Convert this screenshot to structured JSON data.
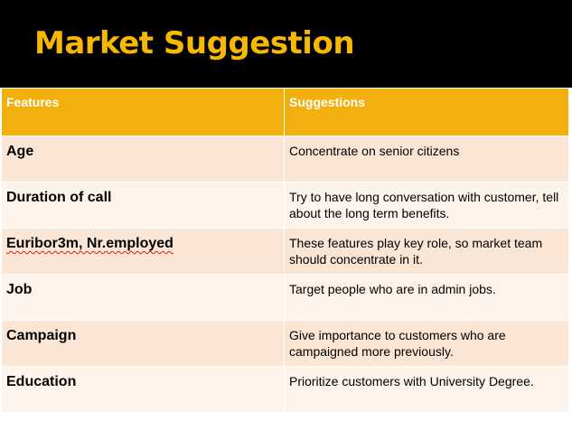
{
  "slide": {
    "title": "Market Suggestion"
  },
  "table": {
    "headers": [
      "Features",
      "Suggestions"
    ],
    "rows": [
      {
        "feature": "Age",
        "suggestion": "Concentrate on senior citizens"
      },
      {
        "feature": "Duration of call",
        "suggestion": "Try to have long conversation with customer, tell about the long term benefits."
      },
      {
        "feature": "Euribor3m, Nr.employed",
        "suggestion": "These features play key role, so market team should  concentrate in it."
      },
      {
        "feature": "Job",
        "suggestion": "Target people who are in admin jobs."
      },
      {
        "feature": "Campaign",
        "suggestion": "Give importance to customers who are campaigned more previously."
      },
      {
        "feature": "Education",
        "suggestion": "Prioritize customers with University Degree."
      }
    ]
  },
  "colors": {
    "title_band": "#000000",
    "title_text": "#f6b800",
    "header_fill": "#f2b00f",
    "row_fill_odd": "#fbe5d5",
    "row_fill_even": "#fdf3ea"
  }
}
